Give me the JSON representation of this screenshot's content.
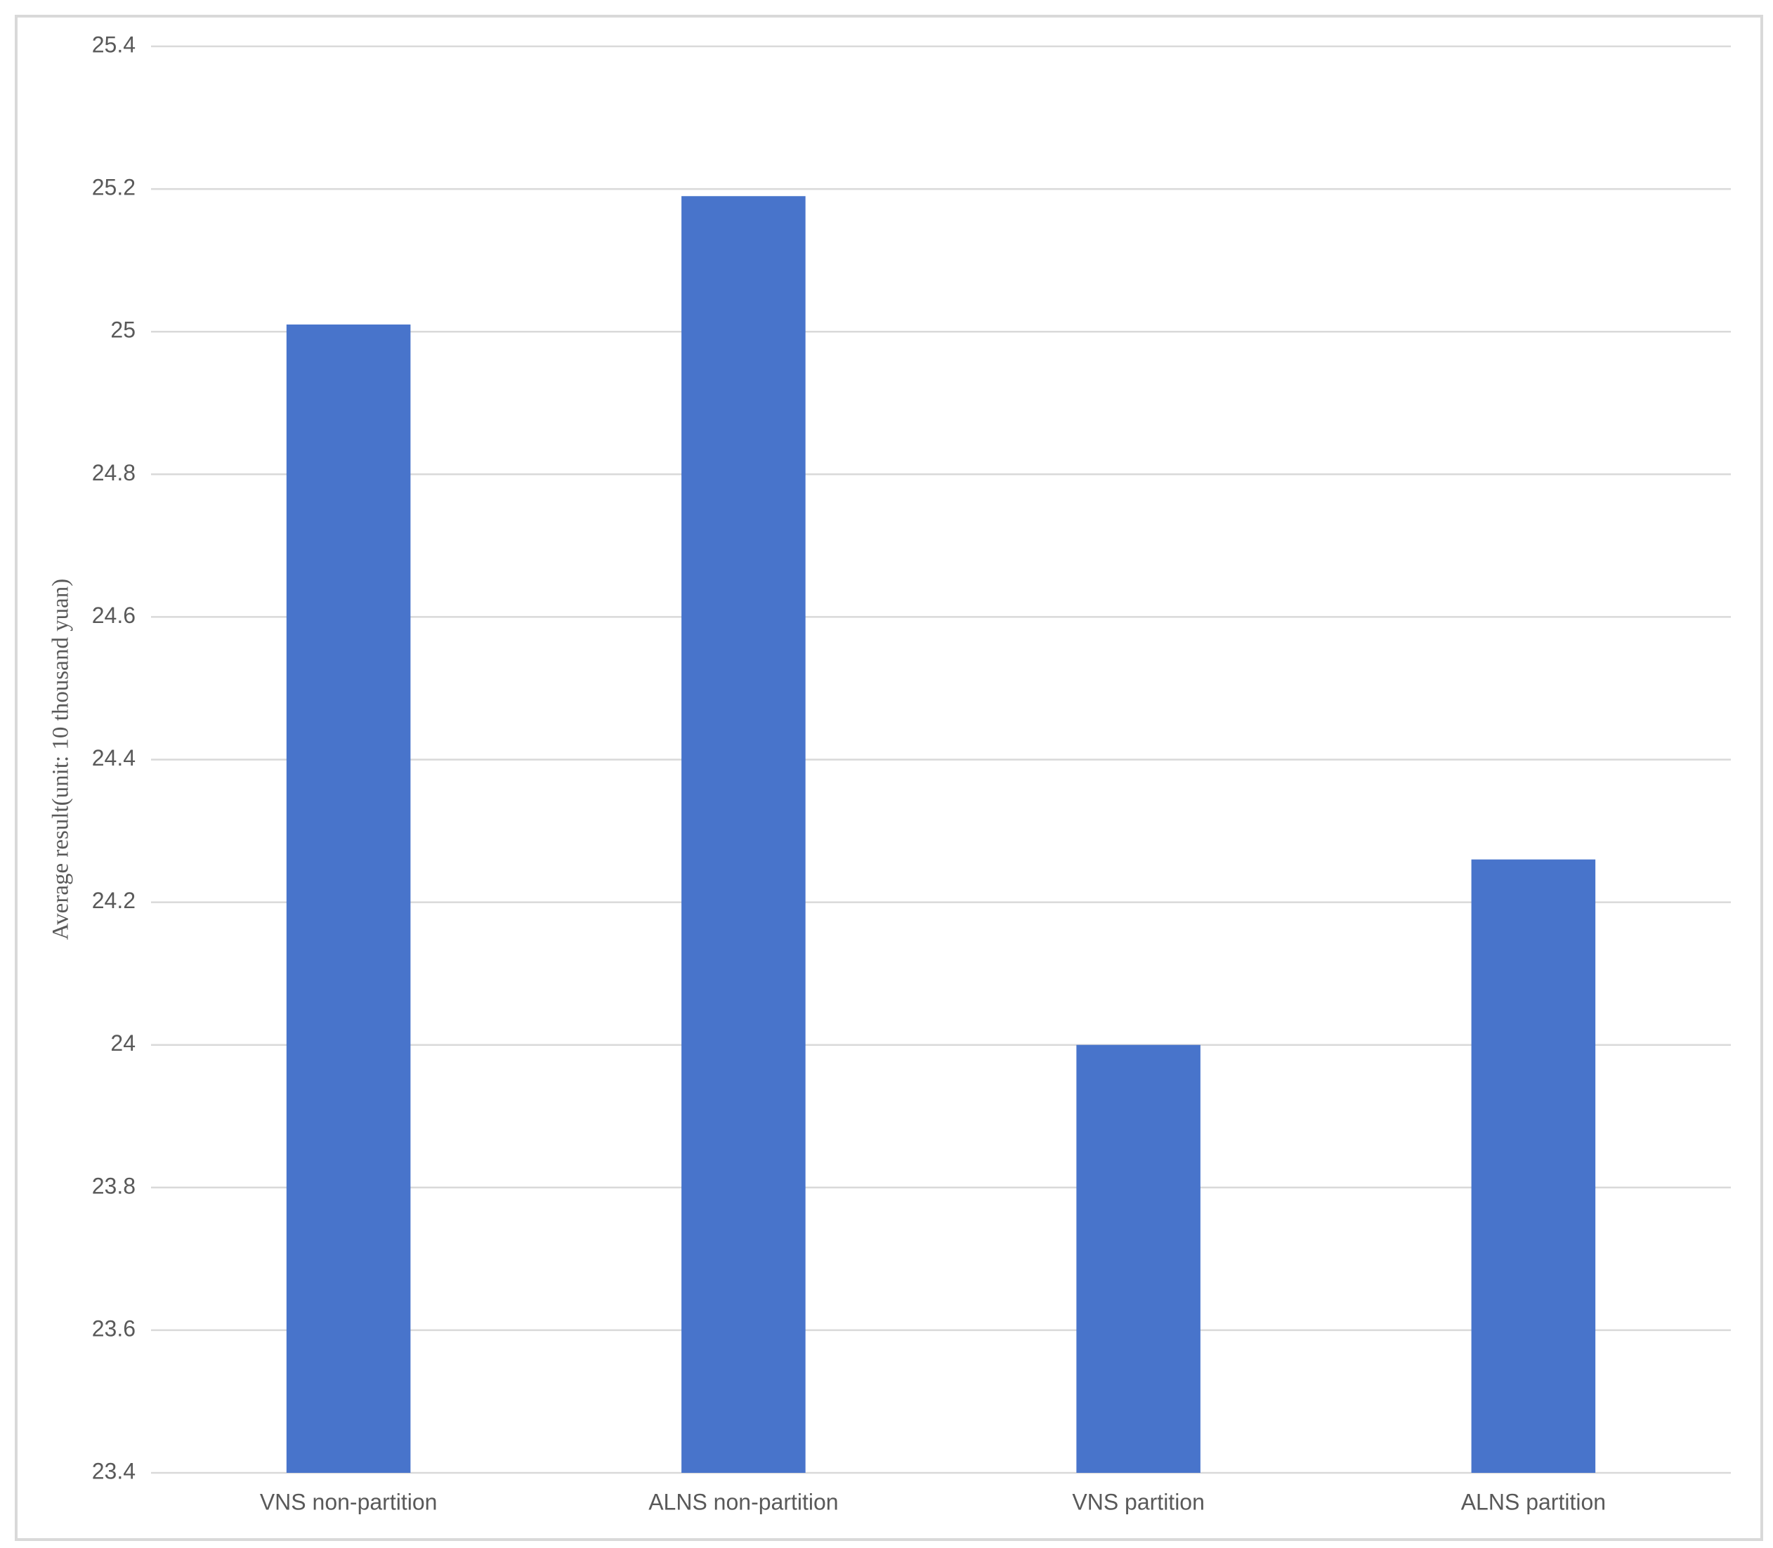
{
  "chart_data": {
    "type": "bar",
    "y_label": "Average result(unit: 10 thousand yuan)",
    "categories": [
      "VNS non-partition",
      "ALNS non-partition",
      "VNS partition",
      "ALNS partition"
    ],
    "values": [
      25.01,
      25.19,
      24.0,
      24.26
    ],
    "color": "#4874cb",
    "ylim": [
      23.4,
      25.4
    ],
    "yticks": [
      23.4,
      23.6,
      23.8,
      24,
      24.2,
      24.4,
      24.6,
      24.8,
      25,
      25.2,
      25.4
    ],
    "grid": true
  }
}
